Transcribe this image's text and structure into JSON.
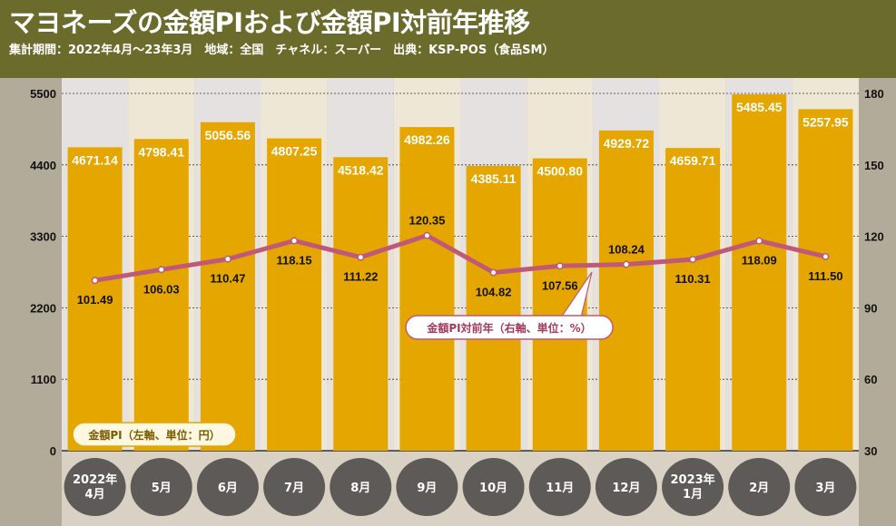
{
  "header": {
    "title": "マヨネーズの金額PIおよび金額PI対前年推移",
    "subtitle": "集計期間：2022年4月～23年3月　地域：全国　チャネル：スーパー　出典：KSP-POS（食品SM）"
  },
  "colors": {
    "header_bg": "#6b6b2b",
    "bar": "#e5a600",
    "line": "#c0587a",
    "badge": "#5d5a57",
    "stripe_light": "#efe7d6",
    "stripe_alt": "#e6e1e1"
  },
  "chart_data": {
    "type": "bar",
    "categories": [
      "2022年\n4月",
      "5月",
      "6月",
      "7月",
      "8月",
      "9月",
      "10月",
      "11月",
      "12月",
      "2023年\n1月",
      "2月",
      "3月"
    ],
    "series": [
      {
        "name": "金額PI（左軸、単位：円）",
        "type": "bar",
        "axis": "left",
        "values": [
          4671.14,
          4798.41,
          5056.56,
          4807.25,
          4518.42,
          4982.26,
          4385.11,
          4500.8,
          4929.72,
          4659.71,
          5485.45,
          5257.95
        ],
        "labels": [
          "4671.14",
          "4798.41",
          "5056.56",
          "4807.25",
          "4518.42",
          "4982.26",
          "4385.11",
          "4500.80",
          "4929.72",
          "4659.71",
          "5485.45",
          "5257.95"
        ]
      },
      {
        "name": "金額PI対前年（右軸、単位：%）",
        "type": "line",
        "axis": "right",
        "values": [
          101.49,
          106.03,
          110.47,
          118.15,
          111.22,
          120.35,
          104.82,
          107.56,
          108.24,
          110.31,
          118.09,
          111.5
        ],
        "labels": [
          "101.49",
          "106.03",
          "110.47",
          "118.15",
          "111.22",
          "120.35",
          "104.82",
          "107.56",
          "108.24",
          "110.31",
          "118.09",
          "111.50"
        ]
      }
    ],
    "left_axis": {
      "range": [
        0,
        5500
      ],
      "ticks": [
        0,
        1100,
        2200,
        3300,
        4400,
        5500
      ],
      "tick_labels": [
        "0",
        "1100",
        "2200",
        "3300",
        "4400",
        "5500"
      ]
    },
    "right_axis": {
      "range": [
        30,
        180
      ],
      "ticks": [
        30,
        60,
        90,
        120,
        150,
        180
      ],
      "tick_labels": [
        "30",
        "60",
        "90",
        "120",
        "150",
        "180"
      ]
    },
    "grid": "dashed horizontal",
    "legend": [
      {
        "text": "金額PI（左軸、単位：円）",
        "placement": "bottom-left"
      },
      {
        "text": "金額PI対前年（右軸、単位：%）",
        "placement": "center"
      }
    ]
  }
}
